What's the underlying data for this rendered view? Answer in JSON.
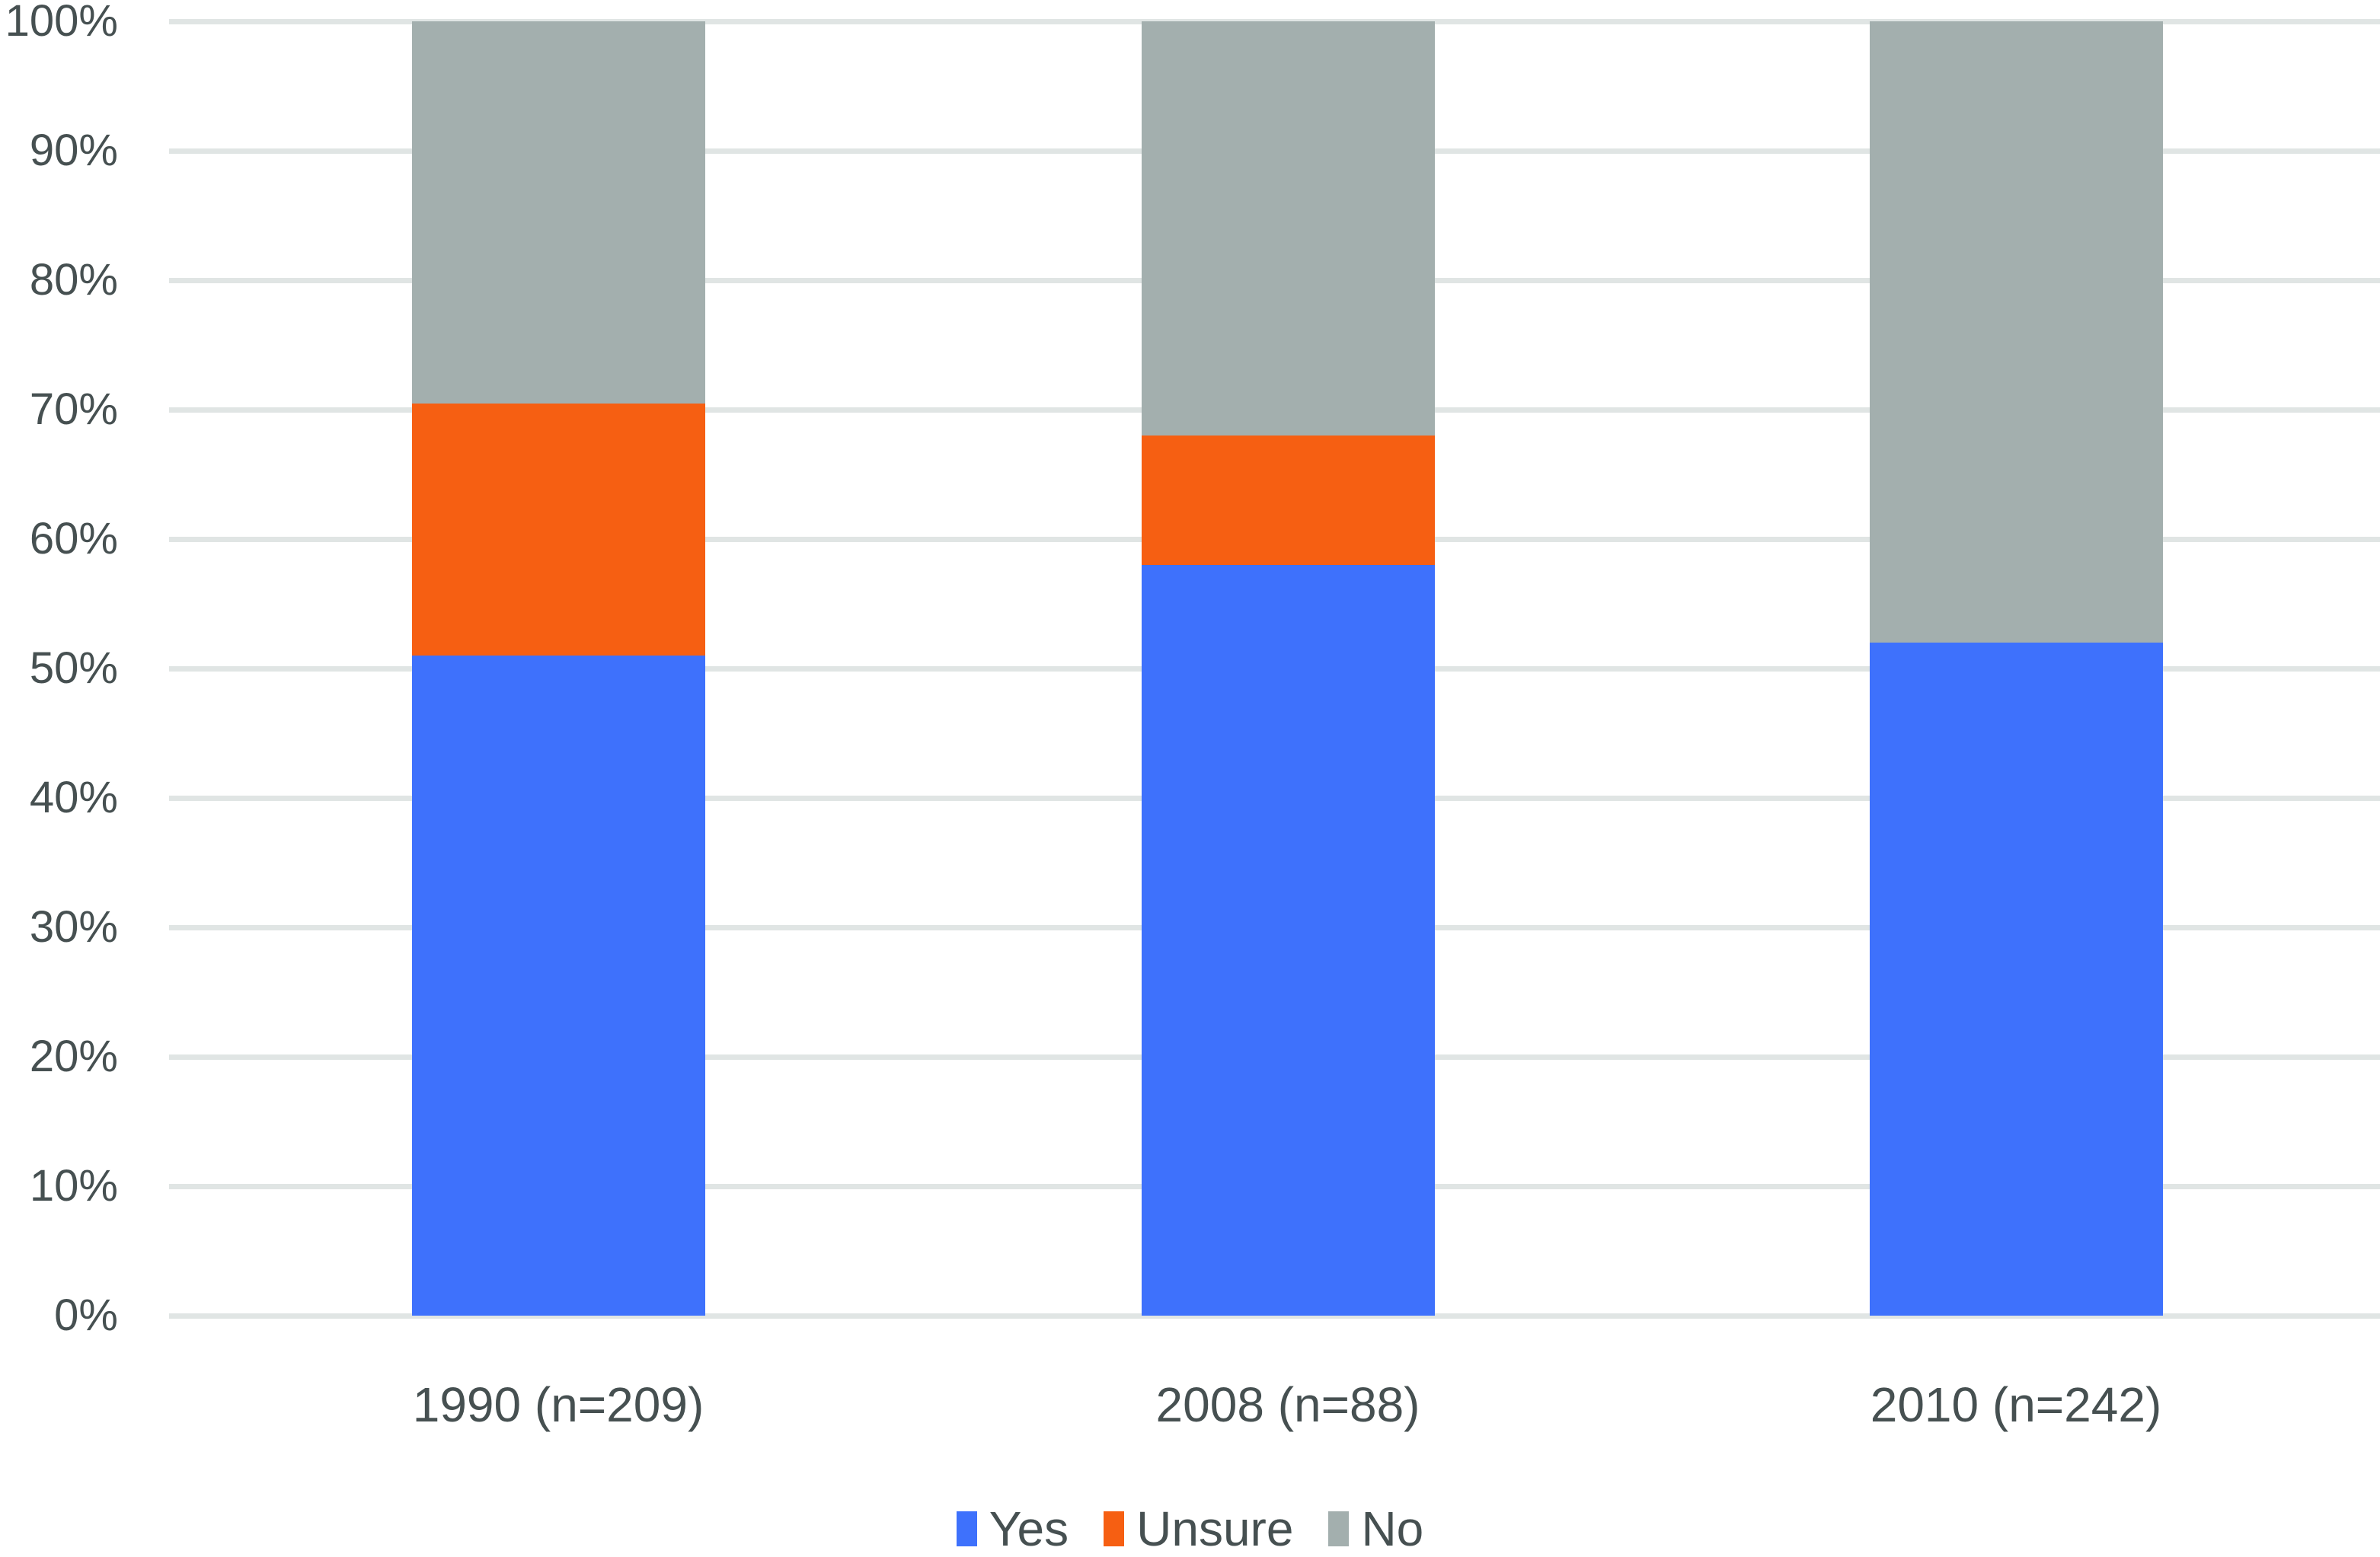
{
  "chart_data": {
    "type": "bar",
    "variant": "stacked-100-percent-column",
    "title": "",
    "xlabel": "",
    "ylabel": "",
    "categories": [
      "1990 (n=209)",
      "2008 (n=88)",
      "2010 (n=242)"
    ],
    "series": [
      {
        "name": "Yes",
        "color": "#3E71FC",
        "values": [
          51,
          58,
          52
        ]
      },
      {
        "name": "Unsure",
        "color": "#F65F12",
        "values": [
          19.5,
          10,
          0
        ]
      },
      {
        "name": "No",
        "color": "#A3AFAE",
        "values": [
          29.5,
          32,
          48
        ]
      }
    ],
    "value_unit": "%",
    "ylim": [
      0,
      100
    ],
    "y_ticks": [
      "0%",
      "10%",
      "20%",
      "30%",
      "40%",
      "50%",
      "60%",
      "70%",
      "80%",
      "90%",
      "100%"
    ],
    "grid": true,
    "gridline_color": "#E0E5E4",
    "axis_text_color": "#465051",
    "background_color": "#FFFFFF",
    "legend_position": "bottom",
    "legend": [
      {
        "label": "Yes",
        "color": "#3E71FC"
      },
      {
        "label": "Unsure",
        "color": "#F65F12"
      },
      {
        "label": "No",
        "color": "#A3AFAE"
      }
    ]
  }
}
